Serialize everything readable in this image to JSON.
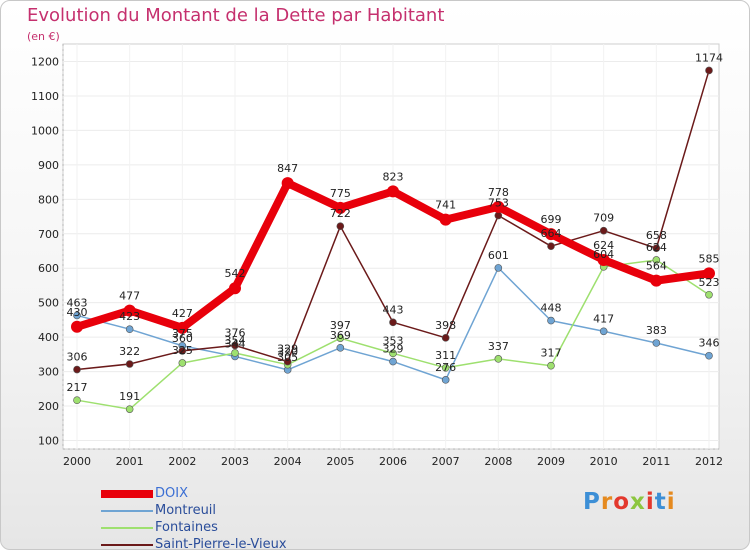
{
  "header": {
    "title": "Evolution du Montant de la Dette par Habitant",
    "unit": "(en €)"
  },
  "brand": {
    "logo": "Proxiti"
  },
  "chart_data": {
    "type": "line",
    "title": "Evolution du Montant de la Dette par Habitant",
    "subtitle": "(en €)",
    "x": [
      2000,
      2001,
      2002,
      2003,
      2004,
      2005,
      2006,
      2007,
      2008,
      2009,
      2010,
      2011,
      2012
    ],
    "ylim": [
      100,
      1200
    ],
    "yticks": [
      100,
      200,
      300,
      400,
      500,
      600,
      700,
      800,
      900,
      1000,
      1100,
      1200
    ],
    "grid": true,
    "legend_position": "bottom-left",
    "series": [
      {
        "name": "DOIX",
        "color": "#e8000b",
        "values": [
          430,
          477,
          427,
          542,
          847,
          775,
          823,
          741,
          778,
          699,
          624,
          564,
          585
        ]
      },
      {
        "name": "Montreuil",
        "color": "#6fa4d3",
        "values": [
          463,
          423,
          375,
          344,
          305,
          369,
          329,
          276,
          601,
          448,
          417,
          383,
          346
        ]
      },
      {
        "name": "Fontaines",
        "color": "#9ee06f",
        "values": [
          217,
          191,
          325,
          354,
          320,
          397,
          353,
          311,
          337,
          317,
          604,
          624,
          523
        ]
      },
      {
        "name": "Saint-Pierre-le-Vieux",
        "color": "#6b1a1a",
        "values": [
          306,
          322,
          360,
          376,
          329,
          722,
          443,
          398,
          753,
          664,
          709,
          658,
          1174
        ]
      }
    ]
  }
}
